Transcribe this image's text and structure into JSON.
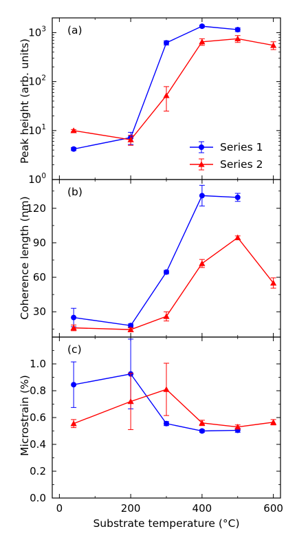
{
  "chart_data": [
    {
      "type": "line",
      "panel_label": "(a)",
      "ylabel": "Peak height (arb. units)",
      "yscale": "log",
      "ylim": [
        1,
        2000
      ],
      "yticks": [
        {
          "value": 1,
          "base": "10",
          "exp": "0"
        },
        {
          "value": 10,
          "base": "10",
          "exp": "1"
        },
        {
          "value": 100,
          "base": "10",
          "exp": "2"
        },
        {
          "value": 1000,
          "base": "10",
          "exp": "3"
        }
      ],
      "legend": {
        "placement": "lower-right",
        "entries": [
          "Series 1",
          "Series 2"
        ]
      },
      "series": [
        {
          "name": "Series 1",
          "color": "#0000ff",
          "marker": "circle",
          "x": [
            40,
            200,
            300,
            400,
            500
          ],
          "y": [
            4.2,
            7.2,
            620,
            1350,
            1150
          ],
          "err": [
            0.3,
            2.0,
            60,
            80,
            100
          ]
        },
        {
          "name": "Series 2",
          "color": "#ff0000",
          "marker": "triangle",
          "x": [
            40,
            200,
            300,
            400,
            500,
            600
          ],
          "y": [
            10,
            6.5,
            52,
            650,
            750,
            550
          ],
          "err": [
            0.5,
            1.5,
            27,
            100,
            120,
            100
          ]
        }
      ]
    },
    {
      "type": "line",
      "panel_label": "(b)",
      "ylabel": "Coherence length (nm)",
      "ylim": [
        8,
        145
      ],
      "yticks": [
        "30",
        "60",
        "90",
        "120"
      ],
      "series": [
        {
          "name": "Series 1",
          "color": "#0000ff",
          "marker": "circle",
          "x": [
            40,
            200,
            300,
            400,
            500
          ],
          "y": [
            25,
            18,
            64.5,
            131,
            129.5
          ],
          "err": [
            8,
            1.5,
            1.5,
            9,
            3.5
          ]
        },
        {
          "name": "Series 2",
          "color": "#ff0000",
          "marker": "triangle",
          "x": [
            40,
            200,
            300,
            400,
            500,
            600
          ],
          "y": [
            16,
            14.5,
            26,
            72,
            94.5,
            55
          ],
          "err": [
            2.5,
            1.5,
            4,
            3.5,
            1.5,
            4.5
          ]
        }
      ]
    },
    {
      "type": "line",
      "panel_label": "(c)",
      "ylabel": "Microstrain (%)",
      "xlabel": "Substrate temperature (°C)",
      "ylim": [
        0,
        1.2
      ],
      "xlim": [
        -20,
        620
      ],
      "xticks": [
        "0",
        "200",
        "400",
        "600"
      ],
      "yticks": [
        "0.0",
        "0.2",
        "0.4",
        "0.6",
        "0.8",
        "1.0"
      ],
      "series": [
        {
          "name": "Series 1",
          "color": "#0000ff",
          "marker": "circle",
          "x": [
            40,
            200,
            300,
            400,
            500
          ],
          "y": [
            0.845,
            0.925,
            0.555,
            0.5,
            0.505
          ],
          "err": [
            0.17,
            0.26,
            0.015,
            0.01,
            0.015
          ]
        },
        {
          "name": "Series 2",
          "color": "#ff0000",
          "marker": "triangle",
          "x": [
            40,
            200,
            300,
            400,
            500,
            600
          ],
          "y": [
            0.555,
            0.72,
            0.81,
            0.56,
            0.53,
            0.565
          ],
          "err": [
            0.03,
            0.21,
            0.195,
            0.02,
            0.015,
            0.02
          ]
        }
      ]
    }
  ]
}
